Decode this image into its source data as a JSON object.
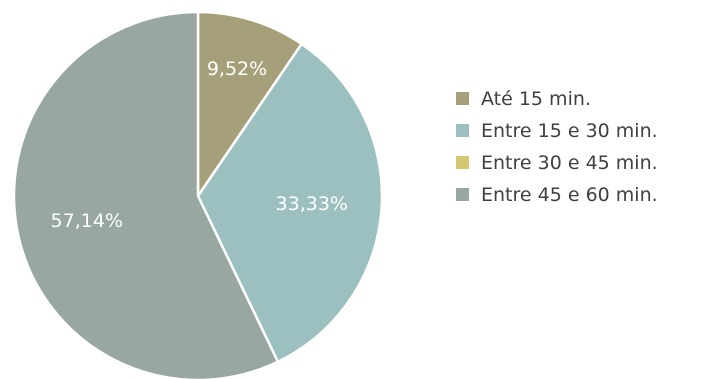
{
  "chart_data": {
    "type": "pie",
    "title": "",
    "slices": [
      {
        "label": "Até 15 min.",
        "value": 9.52,
        "display": "9,52%",
        "color": "#A6A07A"
      },
      {
        "label": "Entre 15 e 30 min.",
        "value": 33.33,
        "display": "33,33%",
        "color": "#9CC0C0"
      },
      {
        "label": "Entre 30 e 45 min.",
        "value": 0,
        "display": "",
        "color": "#D6C870"
      },
      {
        "label": "Entre 45 e 60 min.",
        "value": 57.14,
        "display": "57,14%",
        "color": "#98A79F"
      }
    ],
    "start": "top",
    "direction": "clockwise",
    "legend_position": "right"
  }
}
